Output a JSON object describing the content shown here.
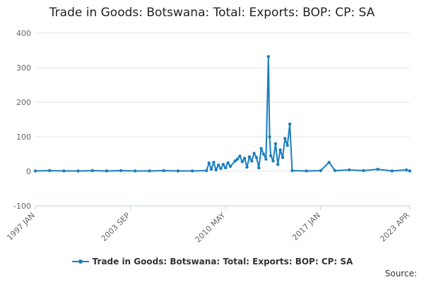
{
  "chart_data": {
    "type": "line",
    "title": "Trade in Goods: Botswana: Total: Exports: BOP: CP: SA",
    "xlabel": "",
    "ylabel": "",
    "x_ticks": [
      "1997 JAN",
      "2003 SEP",
      "2010 MAY",
      "2017 JAN",
      "2023 APR"
    ],
    "x_range": [
      "1997-01",
      "2023-04"
    ],
    "ylim": [
      -100,
      400
    ],
    "y_ticks": [
      -100,
      0,
      100,
      200,
      300,
      400
    ],
    "grid": "horizontal",
    "legend_position": "bottom",
    "colors": {
      "series": "#1a7ebe",
      "grid": "#e6e6e6",
      "axis": "#c0d0e0",
      "text": "#666666"
    },
    "series": [
      {
        "name": "Trade in Goods: Botswana: Total: Exports: BOP: CP: SA",
        "points": [
          [
            "1997-01",
            1
          ],
          [
            "1998-01",
            2
          ],
          [
            "1999-01",
            1
          ],
          [
            "2000-01",
            1
          ],
          [
            "2001-01",
            2
          ],
          [
            "2002-01",
            1
          ],
          [
            "2003-01",
            2
          ],
          [
            "2004-01",
            1
          ],
          [
            "2005-01",
            1
          ],
          [
            "2006-01",
            2
          ],
          [
            "2007-01",
            1
          ],
          [
            "2008-01",
            1
          ],
          [
            "2009-01",
            2
          ],
          [
            "2009-03",
            24
          ],
          [
            "2009-05",
            6
          ],
          [
            "2009-07",
            26
          ],
          [
            "2009-09",
            4
          ],
          [
            "2009-11",
            18
          ],
          [
            "2010-01",
            8
          ],
          [
            "2010-03",
            20
          ],
          [
            "2010-05",
            10
          ],
          [
            "2010-07",
            25
          ],
          [
            "2010-09",
            14
          ],
          [
            "2011-01",
            30
          ],
          [
            "2011-03",
            35
          ],
          [
            "2011-05",
            44
          ],
          [
            "2011-07",
            28
          ],
          [
            "2011-09",
            38
          ],
          [
            "2011-11",
            12
          ],
          [
            "2012-01",
            42
          ],
          [
            "2012-03",
            30
          ],
          [
            "2012-05",
            52
          ],
          [
            "2012-07",
            40
          ],
          [
            "2012-09",
            10
          ],
          [
            "2012-11",
            66
          ],
          [
            "2013-01",
            50
          ],
          [
            "2013-03",
            35
          ],
          [
            "2013-05",
            332
          ],
          [
            "2013-06",
            100
          ],
          [
            "2013-07",
            45
          ],
          [
            "2013-09",
            30
          ],
          [
            "2013-11",
            80
          ],
          [
            "2014-01",
            20
          ],
          [
            "2014-03",
            62
          ],
          [
            "2014-05",
            40
          ],
          [
            "2014-07",
            95
          ],
          [
            "2014-09",
            75
          ],
          [
            "2014-11",
            137
          ],
          [
            "2015-01",
            2
          ],
          [
            "2016-01",
            1
          ],
          [
            "2017-01",
            2
          ],
          [
            "2017-08",
            26
          ],
          [
            "2018-01",
            2
          ],
          [
            "2019-01",
            4
          ],
          [
            "2020-01",
            2
          ],
          [
            "2021-01",
            6
          ],
          [
            "2022-01",
            1
          ],
          [
            "2023-01",
            4
          ],
          [
            "2023-04",
            1
          ]
        ]
      }
    ],
    "source_label": "Source:"
  }
}
